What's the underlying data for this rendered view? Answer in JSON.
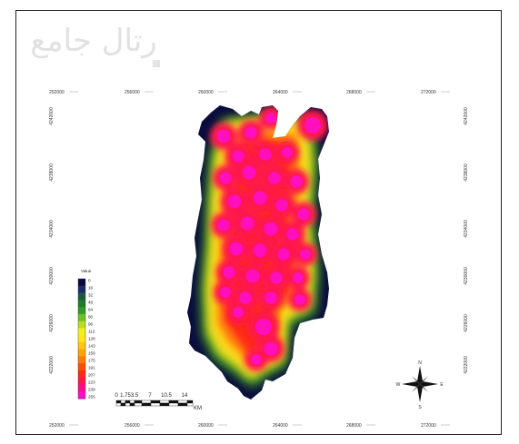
{
  "map": {
    "x_ticks": [
      "252000",
      "256000",
      "260000",
      "264000",
      "268000",
      "272000"
    ],
    "y_ticks": [
      "4242000",
      "4238000",
      "4234000",
      "4230000",
      "4226000",
      "4222000"
    ],
    "legend": {
      "title": "Value",
      "values": [
        "0",
        "16",
        "32",
        "48",
        "64",
        "80",
        "96",
        "112",
        "128",
        "143",
        "159",
        "175",
        "191",
        "207",
        "223",
        "239",
        "255"
      ],
      "colors": [
        "#0b0b3d",
        "#1c2b6a",
        "#1e5a3c",
        "#1f7a2a",
        "#2e9a2a",
        "#6fbf2a",
        "#b8dc23",
        "#f0f020",
        "#ffe41a",
        "#ffc414",
        "#ffa00e",
        "#ff7a0a",
        "#ff4e0a",
        "#ff2a18",
        "#ff1450",
        "#ff0c8a",
        "#ff10c8"
      ]
    },
    "scale_bar": {
      "labels": [
        "0",
        "1.75",
        "3.5",
        "7",
        "10.5",
        "14"
      ],
      "unit": "KM"
    },
    "north_arrow": {
      "directions": [
        "N",
        "E",
        "S",
        "W"
      ]
    },
    "watermark_text": "رتال جامع"
  }
}
